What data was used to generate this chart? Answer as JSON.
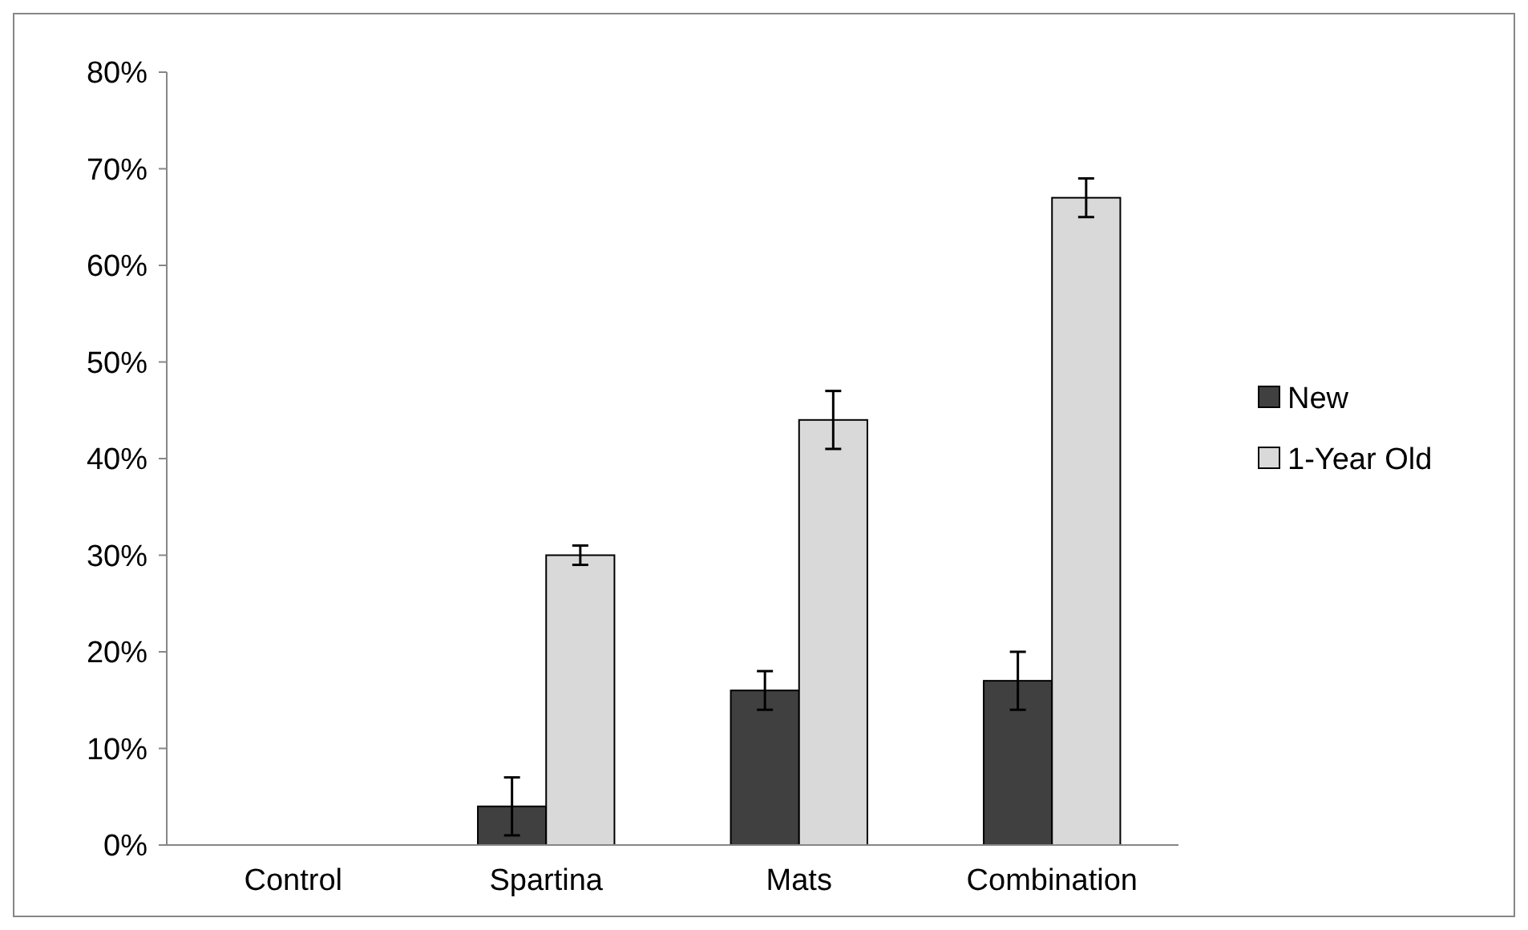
{
  "chart_data": {
    "type": "bar",
    "categories": [
      "Control",
      "Spartina",
      "Mats",
      "Combination"
    ],
    "series": [
      {
        "name": "New",
        "color": "#404040",
        "values": [
          null,
          4,
          16,
          17
        ],
        "errors": [
          null,
          3,
          2,
          3
        ]
      },
      {
        "name": "1-Year Old",
        "color": "#d9d9d9",
        "values": [
          null,
          30,
          44,
          67
        ],
        "errors": [
          null,
          1,
          3,
          2
        ]
      }
    ],
    "ylim": [
      0,
      80
    ],
    "yticks": [
      {
        "value": 0,
        "label": "0%"
      },
      {
        "value": 10,
        "label": "10%"
      },
      {
        "value": 20,
        "label": "20%"
      },
      {
        "value": 30,
        "label": "30%"
      },
      {
        "value": 40,
        "label": "40%"
      },
      {
        "value": 50,
        "label": "50%"
      },
      {
        "value": 60,
        "label": "60%"
      },
      {
        "value": 70,
        "label": "70%"
      },
      {
        "value": 80,
        "label": "80%"
      }
    ],
    "grid": false,
    "legend": "right"
  }
}
